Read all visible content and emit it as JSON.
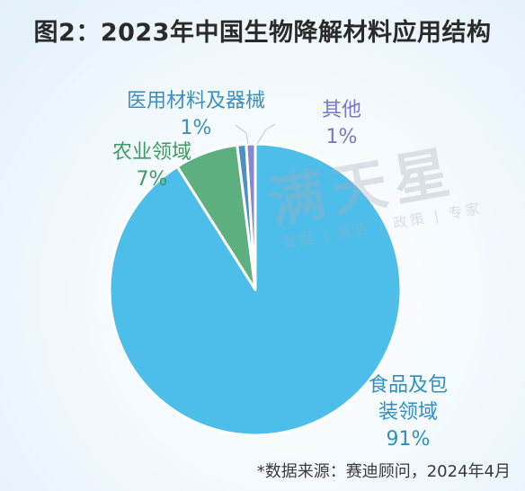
{
  "title": "图2：2023年中国生物降解材料应用结构",
  "chart_data": {
    "type": "pie",
    "title": "图2：2023年中国生物降解材料应用结构",
    "slices": [
      {
        "label": "食品及包装领域",
        "display_label": [
          "食品及包",
          "装领域"
        ],
        "value": 91,
        "pct_label": "91%",
        "color": "#4dbde9"
      },
      {
        "label": "农业领域",
        "value": 7,
        "pct_label": "7%",
        "color": "#5eaf80"
      },
      {
        "label": "医用材料及器械",
        "value": 1,
        "pct_label": "1%",
        "color": "#4f8fc4"
      },
      {
        "label": "其他",
        "value": 1,
        "pct_label": "1%",
        "color": "#8787cf"
      }
    ],
    "legend": "none (direct labels)"
  },
  "watermark": {
    "main": "满天星",
    "sub": "数据 | 报告 | 政策 | 专家"
  },
  "source": "*数据来源：赛迪顾问，2024年4月"
}
